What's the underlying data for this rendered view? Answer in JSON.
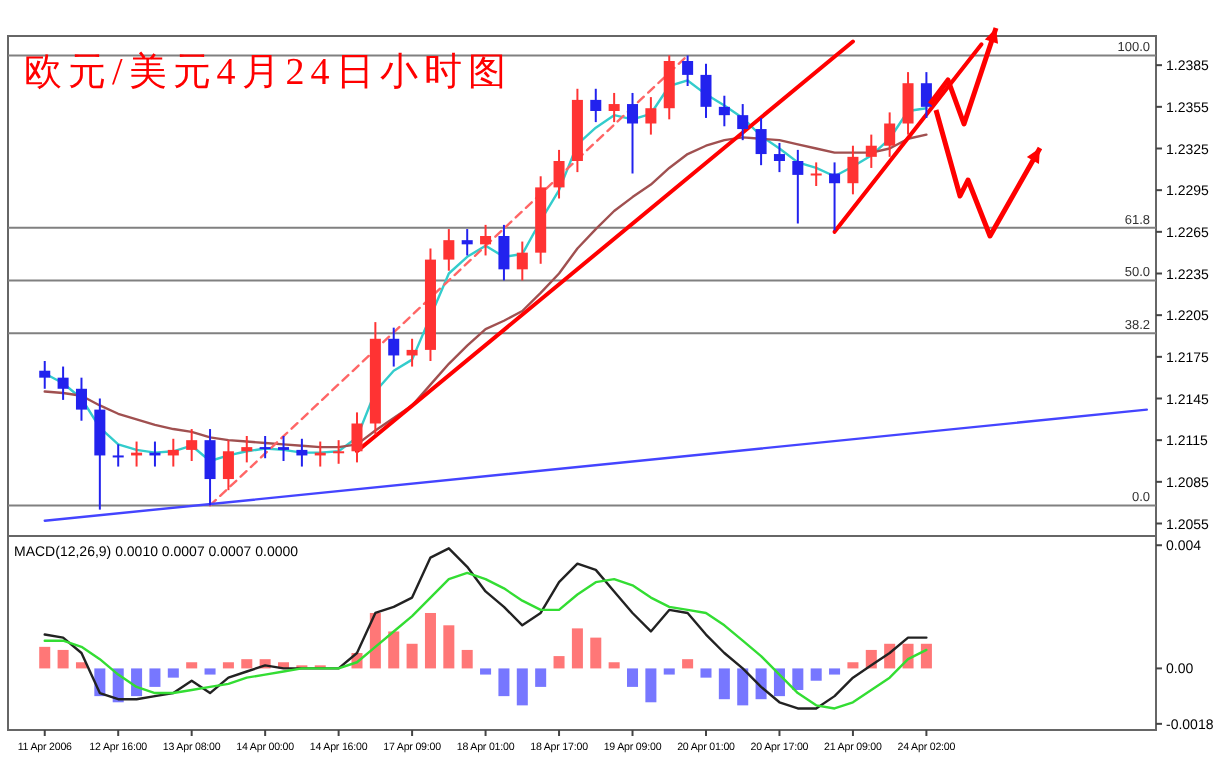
{
  "chart_data": [
    {
      "type": "candlestick",
      "title": "欧元/美元4月24日小时图",
      "categories": [
        null,
        null,
        null,
        null,
        null,
        null,
        null,
        null,
        null,
        null,
        null,
        null,
        null,
        null,
        null,
        null,
        null,
        null,
        null,
        null,
        null,
        null,
        null,
        null,
        null,
        null,
        null,
        null,
        null,
        null,
        null,
        null,
        null,
        null,
        null,
        null,
        null,
        null,
        null,
        null,
        null,
        null,
        null,
        null,
        null,
        null,
        null,
        null,
        null,
        null,
        null,
        null,
        null,
        null,
        null,
        null,
        null,
        null,
        null,
        null,
        null
      ],
      "ohlc": [
        [
          1.2165,
          1.2172,
          1.2152,
          1.216
        ],
        [
          1.216,
          1.2168,
          1.2144,
          1.2152
        ],
        [
          1.2152,
          1.216,
          1.2129,
          1.2137
        ],
        [
          1.2137,
          1.2145,
          1.2065,
          1.2104
        ],
        [
          1.2104,
          1.2112,
          1.2096,
          1.2104
        ],
        [
          1.2104,
          1.2114,
          1.2096,
          1.2106
        ],
        [
          1.2106,
          1.2114,
          1.2096,
          1.2104
        ],
        [
          1.2104,
          1.2116,
          1.2096,
          1.2108
        ],
        [
          1.2108,
          1.2123,
          1.21,
          1.2115
        ],
        [
          1.2115,
          1.2123,
          1.2068,
          1.2087
        ],
        [
          1.2087,
          1.2115,
          1.2079,
          1.2107
        ],
        [
          1.2107,
          1.2118,
          1.2099,
          1.211
        ],
        [
          1.211,
          1.2118,
          1.2102,
          1.211
        ],
        [
          1.211,
          1.2118,
          1.21,
          1.2108
        ],
        [
          1.2108,
          1.2116,
          1.2096,
          1.2104
        ],
        [
          1.2104,
          1.2114,
          1.2096,
          1.2106
        ],
        [
          1.2106,
          1.2115,
          1.2098,
          1.2107
        ],
        [
          1.2107,
          1.2135,
          1.2099,
          1.2127
        ],
        [
          1.2127,
          1.22,
          1.2119,
          1.2188
        ],
        [
          1.2188,
          1.2196,
          1.2168,
          1.2176
        ],
        [
          1.2176,
          1.2188,
          1.2168,
          1.218
        ],
        [
          1.218,
          1.2253,
          1.2172,
          1.2245
        ],
        [
          1.2245,
          1.2267,
          1.2237,
          1.2259
        ],
        [
          1.2259,
          1.2267,
          1.2248,
          1.2256
        ],
        [
          1.2256,
          1.227,
          1.2248,
          1.2262
        ],
        [
          1.2262,
          1.227,
          1.223,
          1.2238
        ],
        [
          1.2238,
          1.2258,
          1.223,
          1.225
        ],
        [
          1.225,
          1.2305,
          1.2242,
          1.2297
        ],
        [
          1.2297,
          1.2324,
          1.2289,
          1.2316
        ],
        [
          1.2316,
          1.2368,
          1.2308,
          1.236
        ],
        [
          1.236,
          1.2368,
          1.2344,
          1.2352
        ],
        [
          1.2352,
          1.2365,
          1.2344,
          1.2357
        ],
        [
          1.2357,
          1.2365,
          1.2307,
          1.2343
        ],
        [
          1.2343,
          1.2362,
          1.2335,
          1.2354
        ],
        [
          1.2354,
          1.2392,
          1.2346,
          1.2388
        ],
        [
          1.2388,
          1.2392,
          1.237,
          1.2378
        ],
        [
          1.2378,
          1.2386,
          1.2347,
          1.2355
        ],
        [
          1.2355,
          1.2363,
          1.2341,
          1.2349
        ],
        [
          1.2349,
          1.2357,
          1.2331,
          1.2339
        ],
        [
          1.2339,
          1.2347,
          1.2313,
          1.2321
        ],
        [
          1.2321,
          1.2329,
          1.2308,
          1.2316
        ],
        [
          1.2316,
          1.2324,
          1.2271,
          1.2306
        ],
        [
          1.2306,
          1.2315,
          1.2298,
          1.2307
        ],
        [
          1.2307,
          1.2315,
          1.2266,
          1.23
        ],
        [
          1.23,
          1.2327,
          1.2292,
          1.2319
        ],
        [
          1.2319,
          1.2335,
          1.2311,
          1.2327
        ],
        [
          1.2327,
          1.2351,
          1.2319,
          1.2343
        ],
        [
          1.2343,
          1.238,
          1.2335,
          1.2372
        ],
        [
          1.2372,
          1.238,
          1.2347,
          1.2355
        ],
        null,
        null,
        null,
        null,
        null,
        null,
        null,
        null,
        null,
        null,
        null,
        null
      ],
      "colors": [
        "#2222ee",
        "#2222ee",
        "#2222ee",
        "#2222ee",
        "#2222ee",
        "#ff3333",
        "#2222ee",
        "#ff3333",
        "#ff3333",
        "#2222ee",
        "#ff3333",
        "#ff3333",
        "#2222ee",
        "#2222ee",
        "#2222ee",
        "#ff3333",
        "#ff3333",
        "#ff3333",
        "#ff3333",
        "#2222ee",
        "#ff3333",
        "#ff3333",
        "#ff3333",
        "#2222ee",
        "#ff3333",
        "#2222ee",
        "#ff3333",
        "#ff3333",
        "#ff3333",
        "#ff3333",
        "#2222ee",
        "#ff3333",
        "#2222ee",
        "#ff3333",
        "#ff3333",
        "#2222ee",
        "#2222ee",
        "#2222ee",
        "#2222ee",
        "#2222ee",
        "#2222ee",
        "#2222ee",
        "#ff3333",
        "#2222ee",
        "#ff3333",
        "#ff3333",
        "#ff3333",
        "#ff3333",
        "#2222ee",
        null,
        null,
        null,
        null,
        null,
        null,
        null,
        null,
        null,
        null,
        null,
        null
      ],
      "ylim": [
        1.2046,
        1.2406
      ],
      "yticks": [
        1.2055,
        1.2085,
        1.2115,
        1.2145,
        1.2175,
        1.2205,
        1.2235,
        1.2265,
        1.2295,
        1.2325,
        1.2355,
        1.2385
      ],
      "tick_labels": "y",
      "ref_lines": [
        {
          "axis": "y",
          "value": 1.2392,
          "color": "#808080"
        },
        {
          "axis": "y",
          "value": 1.2268,
          "color": "#808080"
        },
        {
          "axis": "y",
          "value": 1.223,
          "color": "#808080"
        },
        {
          "axis": "y",
          "value": 1.2192,
          "color": "#808080"
        },
        {
          "axis": "y",
          "value": 1.2068,
          "color": "#808080"
        }
      ],
      "annotations": [
        {
          "text": "100.0",
          "y": 1.2392
        },
        {
          "text": "61.8",
          "y": 1.2268
        },
        {
          "text": "50.0",
          "y": 1.223
        },
        {
          "text": "38.2",
          "y": 1.2192
        },
        {
          "text": "0.0",
          "y": 1.2068
        }
      ],
      "series": [
        {
          "type": "line",
          "color": "#33cccc",
          "values": [
            1.2163,
            1.2156,
            1.2145,
            1.2124,
            1.2112,
            1.2108,
            1.2106,
            1.2107,
            1.2111,
            1.21,
            1.2104,
            1.2107,
            1.2109,
            1.2108,
            1.2106,
            1.2106,
            1.2107,
            1.2117,
            1.215,
            1.2165,
            1.2173,
            null,
            1.2235,
            1.2247,
            1.2255,
            1.2247,
            1.2249,
            1.2273,
            1.2295,
            1.2328,
            1.234,
            1.2349,
            1.2346,
            1.235,
            1.237,
            1.2374,
            1.2364,
            1.2356,
            1.2347,
            1.2334,
            1.2325,
            1.2315,
            1.2311,
            1.2305,
            1.2312,
            1.232,
            1.2332,
            1.2352,
            1.2354,
            null,
            null,
            null,
            null,
            null,
            null,
            null,
            null,
            null,
            null,
            null,
            null
          ]
        },
        {
          "type": "line",
          "color": "#a05050",
          "values": [
            1.215,
            1.2149,
            1.2147,
            1.214,
            1.2134,
            1.213,
            1.2126,
            1.2123,
            1.2121,
            1.2117,
            1.2115,
            1.2114,
            1.2113,
            1.2112,
            1.2111,
            1.211,
            1.211,
            1.2112,
            1.2122,
            1.2131,
            1.214,
            1.2155,
            1.217,
            1.2183,
            1.2195,
            1.2201,
            1.2208,
            1.2221,
            1.2235,
            1.2253,
            1.2267,
            1.228,
            1.229,
            1.2299,
            1.2311,
            1.2321,
            1.2327,
            1.2331,
            1.2333,
            1.2332,
            1.2331,
            1.2328,
            1.2325,
            1.2322,
            1.2322,
            1.2322,
            1.2325,
            1.2332,
            1.2335,
            null,
            null,
            null,
            null,
            null,
            null,
            null,
            null,
            null,
            null,
            null,
            null
          ]
        },
        {
          "type": "line",
          "color": "#ff0000",
          "values": [
            null,
            null,
            null,
            null,
            null,
            null,
            null,
            null,
            null,
            null,
            null,
            null,
            null,
            null,
            null,
            null,
            null,
            1.2107,
            null,
            null,
            null,
            null,
            null,
            null,
            null,
            null,
            null,
            null,
            null,
            null,
            null,
            null,
            null,
            null,
            null,
            null,
            null,
            null,
            null,
            null,
            null,
            null,
            null,
            null,
            1.2402,
            null,
            null,
            null,
            null,
            null,
            null,
            null,
            null,
            null,
            null,
            null,
            null,
            null,
            null,
            null,
            null
          ]
        },
        {
          "type": "line",
          "color": "#ff0000",
          "values": [
            null,
            null,
            null,
            null,
            null,
            null,
            null,
            null,
            null,
            null,
            null,
            null,
            null,
            null,
            null,
            null,
            null,
            null,
            null,
            null,
            null,
            null,
            null,
            null,
            null,
            null,
            null,
            null,
            null,
            null,
            null,
            null,
            null,
            null,
            null,
            null,
            null,
            null,
            null,
            null,
            null,
            null,
            null,
            1.2265,
            null,
            null,
            null,
            null,
            null,
            null,
            null,
            1.24,
            null,
            null,
            null,
            null,
            null,
            null,
            null,
            null,
            null
          ]
        },
        {
          "type": "line",
          "color": "#ff6666",
          "line_style": "dashed",
          "values": [
            null,
            null,
            null,
            null,
            null,
            null,
            null,
            null,
            null,
            1.2068,
            null,
            null,
            null,
            null,
            null,
            null,
            null,
            null,
            null,
            null,
            null,
            null,
            null,
            null,
            null,
            null,
            null,
            null,
            null,
            null,
            null,
            null,
            null,
            null,
            null,
            1.2392,
            null,
            null,
            null,
            null,
            null,
            null,
            null,
            null,
            null,
            null,
            null,
            null,
            null,
            null,
            null,
            null,
            null,
            null,
            null,
            null,
            null,
            null,
            null,
            null,
            null
          ]
        },
        {
          "type": "line",
          "color": "#4444ff",
          "values": [
            1.2057,
            null,
            null,
            null,
            null,
            null,
            null,
            null,
            null,
            null,
            null,
            null,
            null,
            null,
            null,
            null,
            null,
            null,
            null,
            null,
            null,
            null,
            null,
            null,
            null,
            null,
            null,
            null,
            null,
            null,
            null,
            null,
            null,
            null,
            null,
            null,
            null,
            null,
            null,
            null,
            null,
            null,
            null,
            null,
            null,
            null,
            null,
            null,
            null,
            null,
            null,
            null,
            null,
            null,
            null,
            null,
            null,
            null,
            null,
            null,
            1.2137
          ]
        }
      ]
    },
    {
      "type": "bar",
      "title": "MACD(12,26,9) 0.0010 0.0007 0.0007 0.0000",
      "categories": [
        "11 Apr 2006",
        null,
        null,
        null,
        "12 Apr 16:00",
        null,
        null,
        null,
        "13 Apr 08:00",
        null,
        null,
        null,
        "14 Apr 00:00",
        null,
        null,
        null,
        "14 Apr 16:00",
        null,
        null,
        null,
        "17 Apr 09:00",
        null,
        null,
        null,
        "18 Apr 01:00",
        null,
        null,
        null,
        "18 Apr 17:00",
        null,
        null,
        null,
        "19 Apr 09:00",
        null,
        null,
        null,
        "20 Apr 01:00",
        null,
        null,
        null,
        "20 Apr 17:00",
        null,
        null,
        null,
        "21 Apr 09:00",
        null,
        null,
        null,
        "24 Apr 02:00",
        null,
        null,
        null,
        null,
        null,
        null,
        null,
        null,
        null,
        null,
        null,
        null
      ],
      "ylim": [
        -0.002,
        0.0043
      ],
      "yticks": [
        0.004,
        {
          "value": 0,
          "label": "0.00"
        },
        -0.0018
      ],
      "series": [
        {
          "type": "bar",
          "colors": [
            "#ff7777",
            "#ff7777",
            "#ff7777",
            "#7777ff",
            "#7777ff",
            "#7777ff",
            "#7777ff",
            "#7777ff",
            "#ff7777",
            "#7777ff",
            "#ff7777",
            "#ff7777",
            "#ff7777",
            "#ff7777",
            "#ff7777",
            "#ff7777",
            null,
            "#ff7777",
            "#ff7777",
            "#ff7777",
            "#ff7777",
            "#ff7777",
            "#ff7777",
            "#ff7777",
            "#7777ff",
            "#7777ff",
            "#7777ff",
            "#7777ff",
            "#ff7777",
            "#ff7777",
            "#ff7777",
            "#ff7777",
            "#7777ff",
            "#7777ff",
            "#7777ff",
            "#ff7777",
            "#7777ff",
            "#7777ff",
            "#7777ff",
            "#7777ff",
            "#7777ff",
            "#7777ff",
            "#7777ff",
            "#7777ff",
            "#ff7777",
            "#ff7777",
            "#ff7777",
            "#ff7777",
            "#ff7777",
            null,
            null,
            null,
            null,
            null,
            null,
            null,
            null,
            null,
            null,
            null,
            null
          ],
          "values": [
            0.0007,
            0.0006,
            0.0002,
            -0.0009,
            -0.0011,
            -0.0009,
            -0.0006,
            -0.0003,
            0.0002,
            -0.0002,
            0.0002,
            0.0003,
            0.0003,
            0.0002,
            0.0001,
            0.0001,
            null,
            0.0005,
            0.0018,
            0.0012,
            0.0008,
            0.0018,
            0.0014,
            0.0006,
            -0.0002,
            -0.0009,
            -0.0012,
            -0.0006,
            0.0004,
            0.0013,
            0.001,
            0.0002,
            -0.0006,
            -0.0011,
            -0.0002,
            0.0003,
            -0.0003,
            -0.001,
            -0.0012,
            -0.001,
            -0.0009,
            -0.0007,
            -0.0004,
            -0.0002,
            0.0002,
            0.0006,
            0.0008,
            0.0008,
            0.0008,
            null,
            null,
            null,
            null,
            null,
            null,
            null,
            null,
            null,
            null,
            null,
            null
          ]
        },
        {
          "type": "line",
          "color": "#222222",
          "values": [
            0.0011,
            0.001,
            0.0005,
            -0.0008,
            -0.001,
            -0.001,
            -0.0009,
            -0.0008,
            -0.0004,
            -0.0008,
            -0.0003,
            -0.0001,
            0.0001,
            0.0,
            0.0,
            0.0,
            0.0,
            0.0005,
            0.0018,
            0.002,
            0.0023,
            0.0036,
            0.0039,
            0.0033,
            0.0025,
            0.002,
            0.0014,
            0.0018,
            0.0028,
            0.0034,
            0.0032,
            0.0025,
            0.0018,
            0.0012,
            0.0019,
            0.0018,
            0.0011,
            0.0005,
            0.0,
            -0.0006,
            -0.0011,
            -0.0013,
            -0.0013,
            -0.0009,
            -0.0003,
            0.0001,
            0.0005,
            0.001,
            0.001,
            null,
            null,
            null,
            null,
            null,
            null,
            null,
            null,
            null,
            null,
            null,
            null
          ]
        },
        {
          "type": "line",
          "color": "#33dd33",
          "values": [
            0.0009,
            0.0009,
            0.0007,
            0.0003,
            -0.0002,
            -0.0006,
            -0.0008,
            -0.0008,
            -0.0007,
            -0.0006,
            -0.0005,
            -0.0003,
            -0.0002,
            -0.0001,
            0.0,
            0.0,
            0.0,
            0.0002,
            0.0007,
            0.0012,
            0.0017,
            0.0023,
            0.0029,
            0.0031,
            0.0029,
            0.0026,
            0.0022,
            0.0019,
            0.0019,
            0.0024,
            0.0028,
            0.0029,
            0.0027,
            0.0023,
            0.002,
            0.0019,
            0.0018,
            0.0014,
            0.0009,
            0.0004,
            -0.0002,
            -0.0008,
            -0.0012,
            -0.0013,
            -0.0011,
            -0.0007,
            -0.0003,
            0.0003,
            0.0006,
            null,
            null,
            null,
            null,
            null,
            null,
            null,
            null,
            null,
            null,
            null,
            null
          ]
        }
      ]
    }
  ]
}
